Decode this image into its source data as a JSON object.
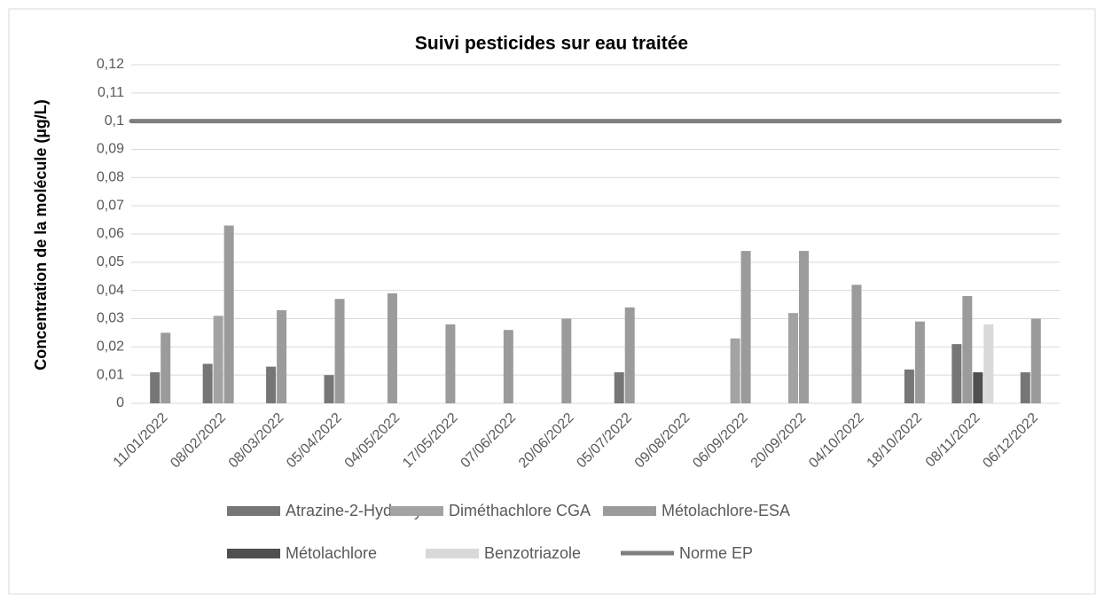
{
  "chart_data": {
    "type": "bar",
    "title": "Suivi pesticides sur eau traitée",
    "ylabel": "Concentration de la molécule (µg/L)",
    "categories": [
      "11/01/2022",
      "08/02/2022",
      "08/03/2022",
      "05/04/2022",
      "04/05/2022",
      "17/05/2022",
      "07/06/2022",
      "20/06/2022",
      "05/07/2022",
      "09/08/2022",
      "06/09/2022",
      "20/09/2022",
      "04/10/2022",
      "18/10/2022",
      "08/11/2022",
      "06/12/2022"
    ],
    "series": [
      {
        "name": "Atrazine-2-Hydroxy",
        "color": "#767676",
        "values": [
          0.011,
          0.014,
          0.013,
          0.01,
          null,
          null,
          null,
          null,
          0.011,
          null,
          null,
          null,
          null,
          0.012,
          0.021,
          0.011
        ]
      },
      {
        "name": "Diméthachlore CGA",
        "color": "#a3a3a3",
        "values": [
          null,
          0.031,
          null,
          null,
          null,
          null,
          null,
          null,
          null,
          null,
          0.023,
          0.032,
          null,
          null,
          null,
          null
        ]
      },
      {
        "name": "Métolachlore-ESA",
        "color": "#9b9b9b",
        "values": [
          0.025,
          0.063,
          0.033,
          0.037,
          0.039,
          0.028,
          0.026,
          0.03,
          0.034,
          null,
          0.054,
          0.054,
          0.042,
          0.029,
          0.038,
          0.03
        ]
      },
      {
        "name": "Métolachlore",
        "color": "#4f4f4f",
        "values": [
          null,
          null,
          null,
          null,
          null,
          null,
          null,
          null,
          null,
          null,
          null,
          null,
          null,
          null,
          0.011,
          null
        ]
      },
      {
        "name": "Benzotriazole",
        "color": "#d9d9d9",
        "values": [
          null,
          null,
          null,
          null,
          null,
          null,
          null,
          null,
          null,
          null,
          null,
          null,
          null,
          null,
          0.028,
          null
        ]
      },
      {
        "name": "Norme EP",
        "color": "#7f7f7f",
        "type": "line",
        "values": [
          0.1,
          0.1,
          0.1,
          0.1,
          0.1,
          0.1,
          0.1,
          0.1,
          0.1,
          0.1,
          0.1,
          0.1,
          0.1,
          0.1,
          0.1,
          0.1
        ]
      }
    ],
    "ylim": [
      0,
      0.12
    ],
    "yticks": [
      0,
      {
        "value": 0.01,
        "label": "0,01"
      },
      {
        "value": 0.02,
        "label": "0,02"
      },
      {
        "value": 0.03,
        "label": "0,03"
      },
      {
        "value": 0.04,
        "label": "0,04"
      },
      {
        "value": 0.05,
        "label": "0,05"
      },
      {
        "value": 0.06,
        "label": "0,06"
      },
      {
        "value": 0.07,
        "label": "0,07"
      },
      {
        "value": 0.08,
        "label": "0,08"
      },
      {
        "value": 0.09,
        "label": "0,09"
      },
      {
        "value": 0.1,
        "label": "0,1"
      },
      {
        "value": 0.11,
        "label": "0,11"
      },
      {
        "value": 0.12,
        "label": "0,12"
      }
    ],
    "grid": true,
    "legend": "bottom"
  }
}
